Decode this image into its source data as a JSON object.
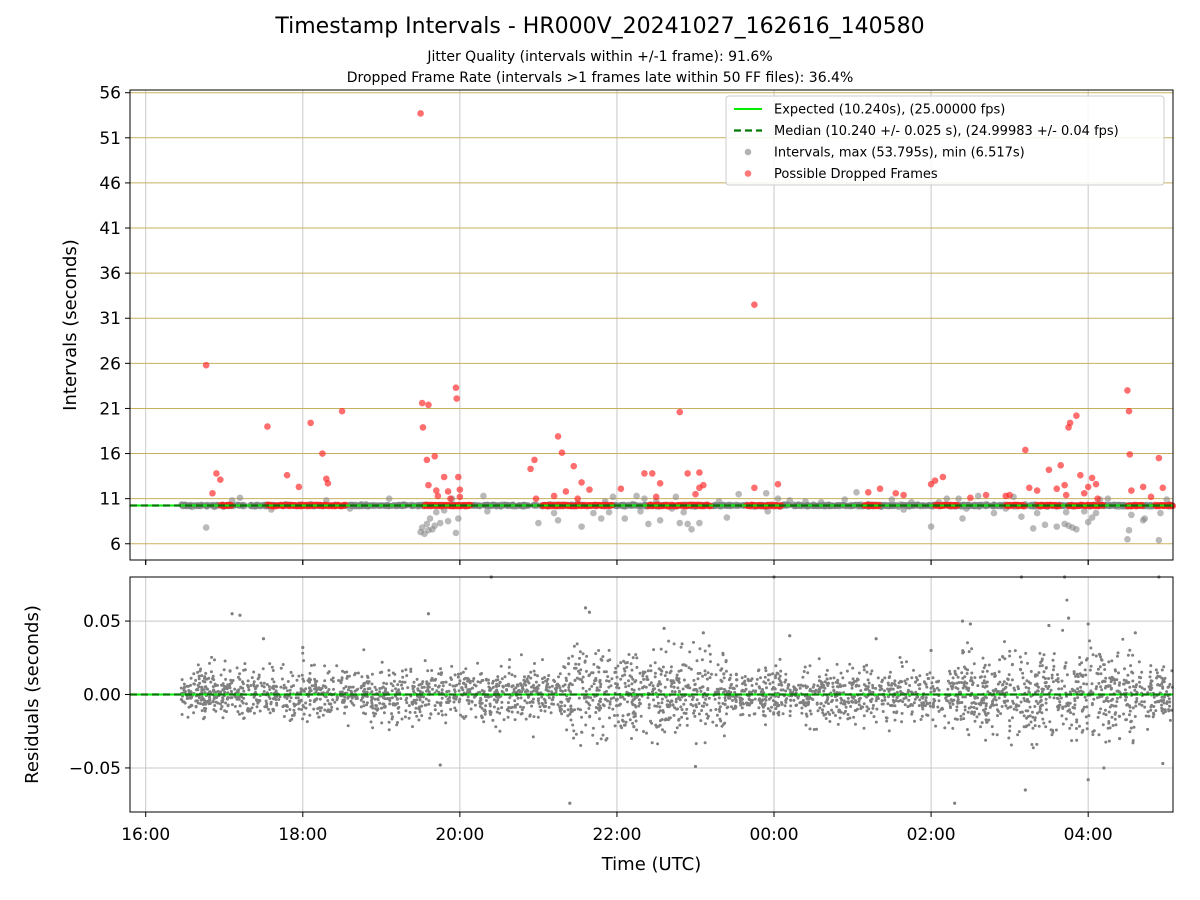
{
  "figure": {
    "title": "Timestamp Intervals - HR000V_20241027_162616_140580",
    "subtitle_1": "Jitter Quality (intervals within +/-1 frame): 91.6%",
    "subtitle_2": "Dropped Frame Rate (intervals >1 frames late within 50 FF files): 36.4%"
  },
  "colors": {
    "expected": "#00ee00",
    "median": "#007a00",
    "intervals": "#808080",
    "dropped": "#ff2020",
    "grid_h": "#c8b060",
    "grid_v": "#c8c8c8"
  },
  "chart_data": [
    {
      "type": "scatter",
      "title": "",
      "ylabel": "Intervals (seconds)",
      "xlabel": "",
      "xlim_hours": [
        15.8,
        29.08
      ],
      "ylim": [
        4.2,
        56.3
      ],
      "x_ticks": [
        {
          "h": 16,
          "label": "16:00"
        },
        {
          "h": 18,
          "label": "18:00"
        },
        {
          "h": 20,
          "label": "20:00"
        },
        {
          "h": 22,
          "label": "22:00"
        },
        {
          "h": 24,
          "label": "00:00"
        },
        {
          "h": 26,
          "label": "02:00"
        },
        {
          "h": 28,
          "label": "04:00"
        }
      ],
      "y_ticks": [
        6,
        11,
        16,
        21,
        26,
        31,
        36,
        41,
        46,
        51,
        56
      ],
      "grid": true,
      "legend_position": "top-right",
      "legend": [
        {
          "kind": "line",
          "color": "#00ee00",
          "label": "Expected (10.240s), (25.00000 fps)"
        },
        {
          "kind": "dash",
          "color": "#007a00",
          "label": "Median (10.240 +/- 0.025 s), (24.99983 +/- 0.04 fps)"
        },
        {
          "kind": "dot",
          "color": "#808080",
          "label": "Intervals, max (53.795s), min (6.517s)"
        },
        {
          "kind": "dot",
          "color": "#ff2020",
          "label": "Possible Dropped Frames"
        }
      ],
      "expected_s": 10.24,
      "median_s": 10.24,
      "series": [
        {
          "name": "Intervals, max (53.795s), min (6.517s)",
          "points": [
            [
              16.77,
              7.8
            ],
            [
              17.05,
              10.3
            ],
            [
              17.1,
              10.8
            ],
            [
              17.2,
              11.1
            ],
            [
              17.6,
              9.8
            ],
            [
              18.1,
              10.4
            ],
            [
              18.3,
              10.8
            ],
            [
              18.6,
              9.9
            ],
            [
              19.1,
              11.0
            ],
            [
              19.5,
              7.3
            ],
            [
              19.52,
              7.8
            ],
            [
              19.55,
              7.1
            ],
            [
              19.58,
              8.2
            ],
            [
              19.6,
              7.5
            ],
            [
              19.62,
              8.8
            ],
            [
              19.65,
              7.6
            ],
            [
              19.68,
              8.0
            ],
            [
              19.7,
              9.5
            ],
            [
              19.75,
              8.3
            ],
            [
              19.8,
              9.7
            ],
            [
              19.85,
              8.5
            ],
            [
              19.9,
              11.0
            ],
            [
              19.95,
              7.2
            ],
            [
              19.98,
              8.8
            ],
            [
              20.2,
              10.3
            ],
            [
              20.3,
              11.3
            ],
            [
              20.35,
              9.6
            ],
            [
              21.0,
              8.3
            ],
            [
              21.2,
              9.4
            ],
            [
              21.25,
              8.6
            ],
            [
              21.5,
              10.5
            ],
            [
              21.55,
              7.9
            ],
            [
              21.7,
              9.4
            ],
            [
              21.8,
              8.8
            ],
            [
              21.85,
              10.7
            ],
            [
              21.9,
              9.5
            ],
            [
              21.95,
              11.2
            ],
            [
              22.1,
              8.8
            ],
            [
              22.2,
              10.4
            ],
            [
              22.25,
              11.3
            ],
            [
              22.3,
              9.6
            ],
            [
              22.35,
              11.0
            ],
            [
              22.4,
              8.2
            ],
            [
              22.5,
              10.7
            ],
            [
              22.55,
              8.6
            ],
            [
              22.7,
              9.9
            ],
            [
              22.75,
              11.2
            ],
            [
              22.8,
              8.3
            ],
            [
              22.85,
              9.5
            ],
            [
              22.9,
              8.2
            ],
            [
              22.95,
              7.6
            ],
            [
              23.05,
              8.3
            ],
            [
              23.3,
              10.7
            ],
            [
              23.4,
              8.9
            ],
            [
              23.55,
              11.5
            ],
            [
              23.75,
              10.1
            ],
            [
              23.9,
              11.6
            ],
            [
              23.92,
              9.6
            ],
            [
              24.05,
              11.0
            ],
            [
              24.2,
              10.8
            ],
            [
              24.4,
              10.7
            ],
            [
              24.6,
              10.6
            ],
            [
              24.9,
              10.9
            ],
            [
              25.05,
              11.7
            ],
            [
              25.2,
              10.4
            ],
            [
              25.5,
              10.9
            ],
            [
              25.65,
              9.8
            ],
            [
              25.75,
              10.6
            ],
            [
              26.0,
              7.9
            ],
            [
              26.1,
              10.6
            ],
            [
              26.2,
              11.0
            ],
            [
              26.35,
              11.0
            ],
            [
              26.4,
              8.8
            ],
            [
              26.45,
              9.9
            ],
            [
              26.6,
              11.3
            ],
            [
              26.7,
              10.4
            ],
            [
              26.8,
              9.4
            ],
            [
              26.95,
              9.9
            ],
            [
              27.05,
              11.2
            ],
            [
              27.15,
              9.0
            ],
            [
              27.3,
              7.7
            ],
            [
              27.35,
              9.4
            ],
            [
              27.45,
              8.1
            ],
            [
              27.6,
              7.9
            ],
            [
              27.7,
              8.2
            ],
            [
              27.72,
              9.5
            ],
            [
              27.75,
              8.0
            ],
            [
              27.8,
              7.8
            ],
            [
              27.85,
              7.6
            ],
            [
              27.95,
              9.6
            ],
            [
              28.0,
              8.4
            ],
            [
              28.05,
              8.9
            ],
            [
              28.1,
              9.4
            ],
            [
              28.15,
              10.9
            ],
            [
              28.25,
              11.0
            ],
            [
              28.5,
              6.5
            ],
            [
              28.52,
              7.5
            ],
            [
              28.55,
              9.2
            ],
            [
              28.7,
              8.6
            ],
            [
              28.72,
              8.8
            ],
            [
              28.9,
              6.4
            ],
            [
              28.92,
              9.4
            ],
            [
              29.0,
              10.9
            ]
          ]
        },
        {
          "name": "Possible Dropped Frames",
          "points": [
            [
              16.77,
              25.8
            ],
            [
              16.85,
              11.6
            ],
            [
              16.9,
              13.8
            ],
            [
              16.95,
              13.1
            ],
            [
              17.55,
              19.0
            ],
            [
              17.8,
              13.6
            ],
            [
              17.95,
              12.3
            ],
            [
              18.1,
              19.4
            ],
            [
              18.25,
              16.0
            ],
            [
              18.3,
              13.2
            ],
            [
              18.32,
              12.7
            ],
            [
              18.5,
              20.7
            ],
            [
              19.5,
              53.7
            ],
            [
              19.52,
              21.6
            ],
            [
              19.53,
              18.9
            ],
            [
              19.58,
              15.3
            ],
            [
              19.6,
              21.4
            ],
            [
              19.6,
              12.5
            ],
            [
              19.68,
              15.7
            ],
            [
              19.7,
              11.9
            ],
            [
              19.72,
              11.3
            ],
            [
              19.8,
              13.4
            ],
            [
              19.85,
              11.8
            ],
            [
              19.88,
              11.0
            ],
            [
              19.95,
              23.3
            ],
            [
              19.96,
              22.1
            ],
            [
              19.98,
              13.4
            ],
            [
              20.0,
              12.0
            ],
            [
              20.0,
              11.2
            ],
            [
              20.9,
              14.3
            ],
            [
              20.95,
              15.3
            ],
            [
              20.97,
              11.0
            ],
            [
              21.2,
              11.3
            ],
            [
              21.25,
              17.9
            ],
            [
              21.3,
              16.1
            ],
            [
              21.35,
              11.8
            ],
            [
              21.45,
              14.6
            ],
            [
              21.5,
              11.0
            ],
            [
              21.55,
              12.8
            ],
            [
              21.65,
              12.0
            ],
            [
              22.05,
              12.1
            ],
            [
              22.35,
              13.8
            ],
            [
              22.45,
              13.8
            ],
            [
              22.5,
              11.2
            ],
            [
              22.55,
              12.7
            ],
            [
              22.8,
              20.6
            ],
            [
              22.9,
              13.8
            ],
            [
              23.0,
              11.5
            ],
            [
              23.05,
              13.9
            ],
            [
              23.05,
              12.2
            ],
            [
              23.1,
              12.5
            ],
            [
              23.75,
              32.5
            ],
            [
              23.75,
              12.2
            ],
            [
              24.05,
              12.6
            ],
            [
              25.2,
              11.7
            ],
            [
              25.35,
              12.1
            ],
            [
              25.55,
              11.6
            ],
            [
              25.65,
              11.4
            ],
            [
              26.0,
              12.6
            ],
            [
              26.05,
              13.0
            ],
            [
              26.15,
              13.4
            ],
            [
              26.5,
              11.1
            ],
            [
              26.7,
              11.4
            ],
            [
              26.95,
              11.3
            ],
            [
              27.0,
              11.4
            ],
            [
              27.2,
              16.4
            ],
            [
              27.25,
              12.2
            ],
            [
              27.35,
              11.9
            ],
            [
              27.5,
              14.2
            ],
            [
              27.6,
              12.1
            ],
            [
              27.65,
              14.7
            ],
            [
              27.7,
              12.5
            ],
            [
              27.72,
              11.4
            ],
            [
              27.75,
              18.9
            ],
            [
              27.77,
              19.4
            ],
            [
              27.85,
              20.2
            ],
            [
              27.9,
              13.6
            ],
            [
              27.95,
              11.6
            ],
            [
              28.0,
              12.3
            ],
            [
              28.05,
              13.3
            ],
            [
              28.1,
              12.6
            ],
            [
              28.12,
              11.0
            ],
            [
              28.5,
              23.0
            ],
            [
              28.52,
              20.7
            ],
            [
              28.53,
              15.9
            ],
            [
              28.55,
              11.9
            ],
            [
              28.7,
              12.3
            ],
            [
              28.8,
              11.2
            ],
            [
              28.9,
              15.5
            ],
            [
              28.95,
              12.2
            ]
          ],
          "baseline_segments": [
            [
              16.95,
              17.1
            ],
            [
              17.55,
              18.55
            ],
            [
              19.55,
              20.15
            ],
            [
              21.05,
              21.95
            ],
            [
              22.4,
              23.2
            ],
            [
              23.65,
              24.1
            ],
            [
              25.15,
              25.35
            ],
            [
              26.05,
              26.35
            ],
            [
              26.95,
              27.2
            ],
            [
              27.35,
              27.65
            ],
            [
              27.75,
              28.2
            ],
            [
              28.5,
              28.7
            ],
            [
              28.85,
              29.08
            ]
          ]
        }
      ]
    },
    {
      "type": "scatter",
      "title": "",
      "ylabel": "Residuals (seconds)",
      "xlabel": "Time (UTC)",
      "xlim_hours": [
        15.8,
        29.08
      ],
      "ylim": [
        -0.08,
        0.08
      ],
      "x_ticks": [
        {
          "h": 16,
          "label": "16:00"
        },
        {
          "h": 18,
          "label": "18:00"
        },
        {
          "h": 20,
          "label": "20:00"
        },
        {
          "h": 22,
          "label": "22:00"
        },
        {
          "h": 24,
          "label": "00:00"
        },
        {
          "h": 26,
          "label": "02:00"
        },
        {
          "h": 28,
          "label": "04:00"
        }
      ],
      "y_ticks": [
        {
          "v": 0.05,
          "label": "0.05"
        },
        {
          "v": 0.0,
          "label": "0.00"
        },
        {
          "v": -0.05,
          "label": "−0.05"
        }
      ],
      "grid": true,
      "zero_line": 0.0,
      "residual_range_hours": [
        16.45,
        29.08
      ],
      "series": [
        {
          "name": "",
          "outliers": [
            [
              17.1,
              0.055
            ],
            [
              17.2,
              0.054
            ],
            [
              17.5,
              0.038
            ],
            [
              18.0,
              0.032
            ],
            [
              19.6,
              0.055
            ],
            [
              19.75,
              -0.048
            ],
            [
              20.4,
              0.08
            ],
            [
              21.4,
              -0.074
            ],
            [
              21.6,
              0.059
            ],
            [
              21.65,
              0.056
            ],
            [
              22.6,
              0.045
            ],
            [
              23.0,
              -0.049
            ],
            [
              24.0,
              0.08
            ],
            [
              24.2,
              0.04
            ],
            [
              25.3,
              0.038
            ],
            [
              26.0,
              0.03
            ],
            [
              26.3,
              -0.074
            ],
            [
              26.4,
              0.05
            ],
            [
              26.5,
              0.048
            ],
            [
              27.15,
              0.08
            ],
            [
              27.2,
              -0.065
            ],
            [
              27.5,
              0.047
            ],
            [
              27.7,
              0.08
            ],
            [
              27.75,
              0.052
            ],
            [
              28.0,
              0.048
            ],
            [
              28.0,
              -0.058
            ],
            [
              28.2,
              -0.05
            ],
            [
              28.4,
              -0.03
            ],
            [
              28.9,
              0.08
            ],
            [
              28.95,
              -0.047
            ],
            [
              28.6,
              0.042
            ],
            [
              23.1,
              0.042
            ]
          ]
        }
      ]
    }
  ]
}
